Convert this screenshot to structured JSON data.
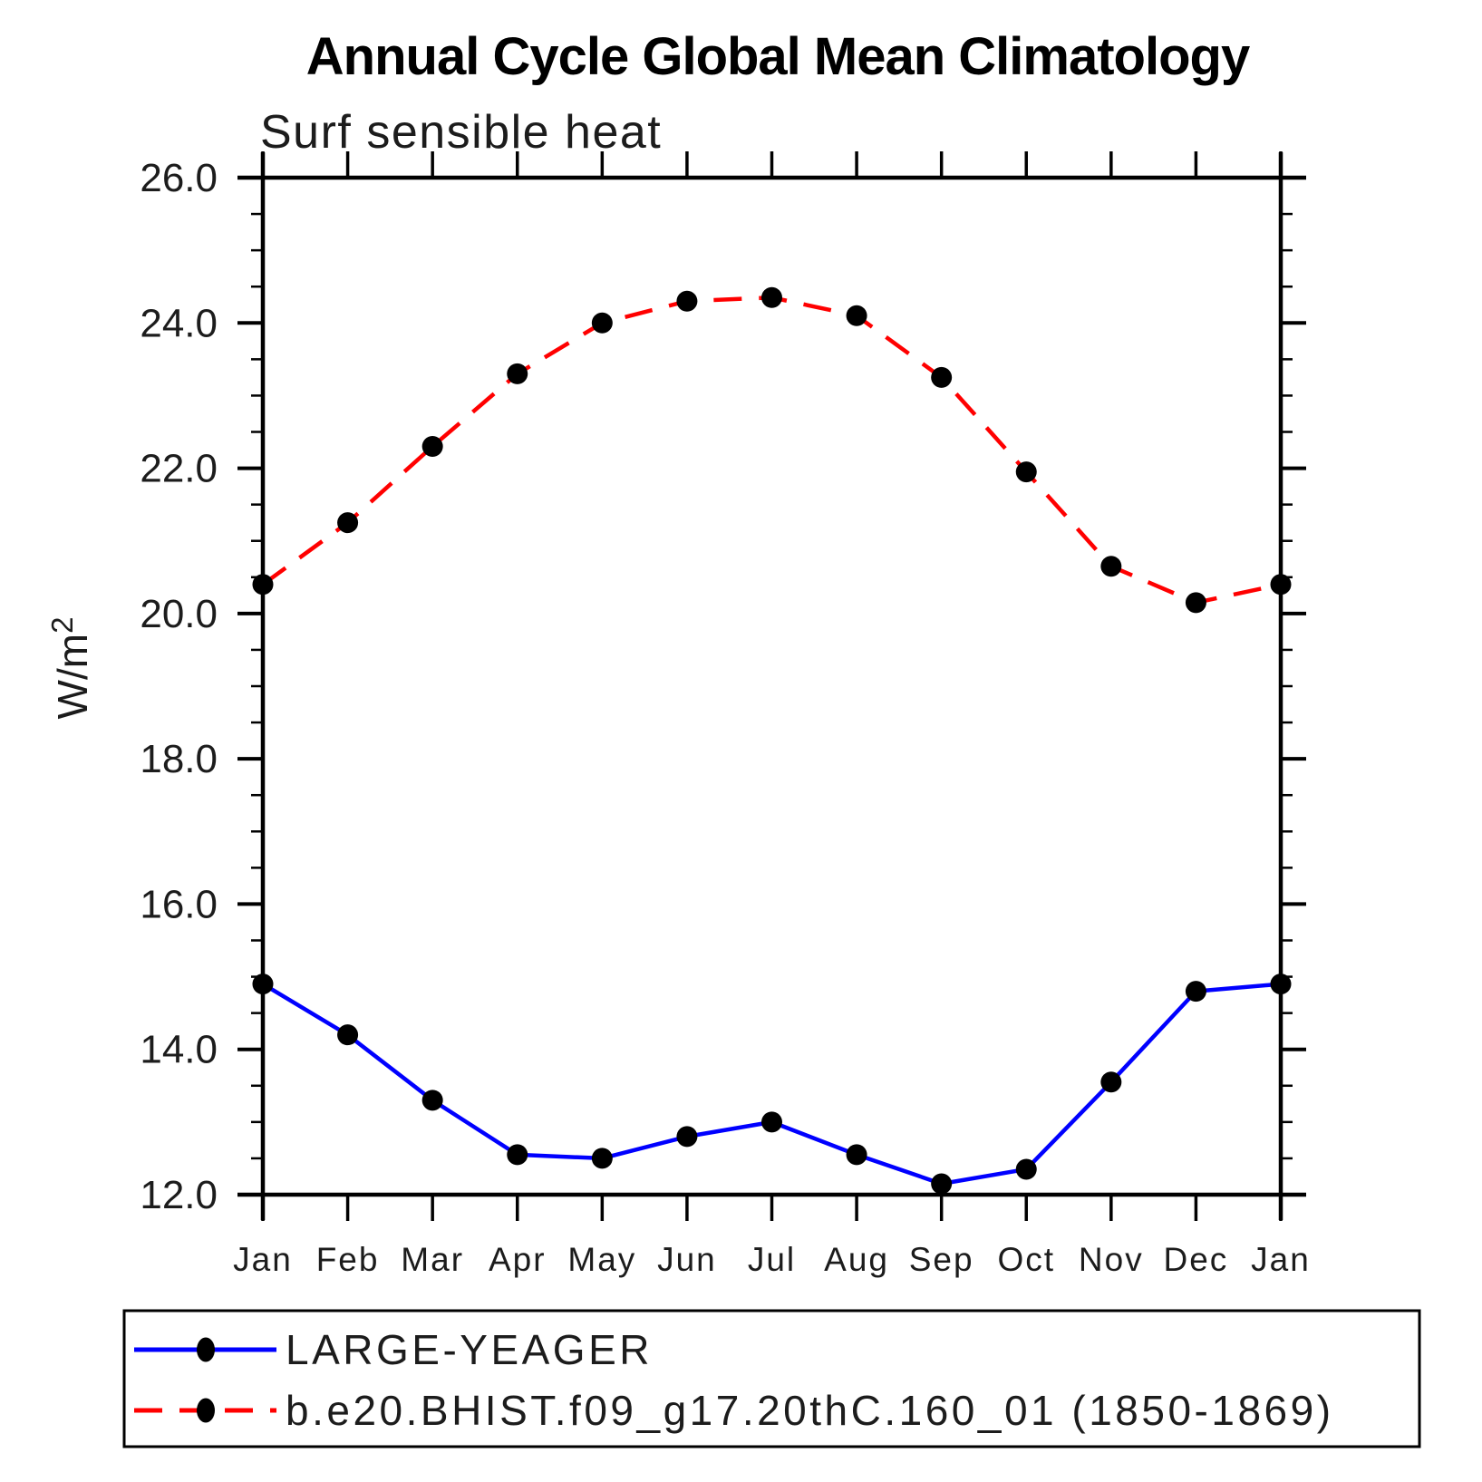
{
  "page": {
    "background": "#ffffff",
    "text_color": "#1c1c1c",
    "axis_color": "#000000"
  },
  "chart_data": {
    "type": "line",
    "title": "Annual Cycle Global Mean Climatology",
    "subtitle": "Surf sensible heat",
    "ylabel_base": "W/m",
    "ylabel_exponent": "2",
    "xlabel": "",
    "x_categories": [
      "Jan",
      "Feb",
      "Mar",
      "Apr",
      "May",
      "Jun",
      "Jul",
      "Aug",
      "Sep",
      "Oct",
      "Nov",
      "Dec",
      "Jan"
    ],
    "ylim": [
      12.0,
      26.0
    ],
    "y_major_tick_step": 2.0,
    "y_minor_tick_step": 0.5,
    "y_tick_labels": [
      "12.0",
      "14.0",
      "16.0",
      "18.0",
      "20.0",
      "22.0",
      "24.0",
      "26.0"
    ],
    "grid": false,
    "units": "W/m2",
    "legend_position": "bottom-left-box",
    "series": [
      {
        "name": "LARGE-YEAGER",
        "line_color": "#0000ff",
        "line_style": "solid",
        "marker": "filled-circle",
        "marker_color": "#000000",
        "values": [
          14.9,
          14.2,
          13.3,
          12.55,
          12.5,
          12.8,
          13.0,
          12.55,
          12.15,
          12.35,
          13.55,
          14.8,
          14.9
        ]
      },
      {
        "name": "b.e20.BHIST.f09_g17.20thC.160_01 (1850-1869)",
        "line_color": "#ff0000",
        "line_style": "dashed",
        "marker": "filled-circle",
        "marker_color": "#000000",
        "values": [
          20.4,
          21.25,
          22.3,
          23.3,
          24.0,
          24.3,
          24.35,
          24.1,
          23.25,
          21.95,
          20.65,
          20.15,
          20.4
        ]
      }
    ]
  }
}
